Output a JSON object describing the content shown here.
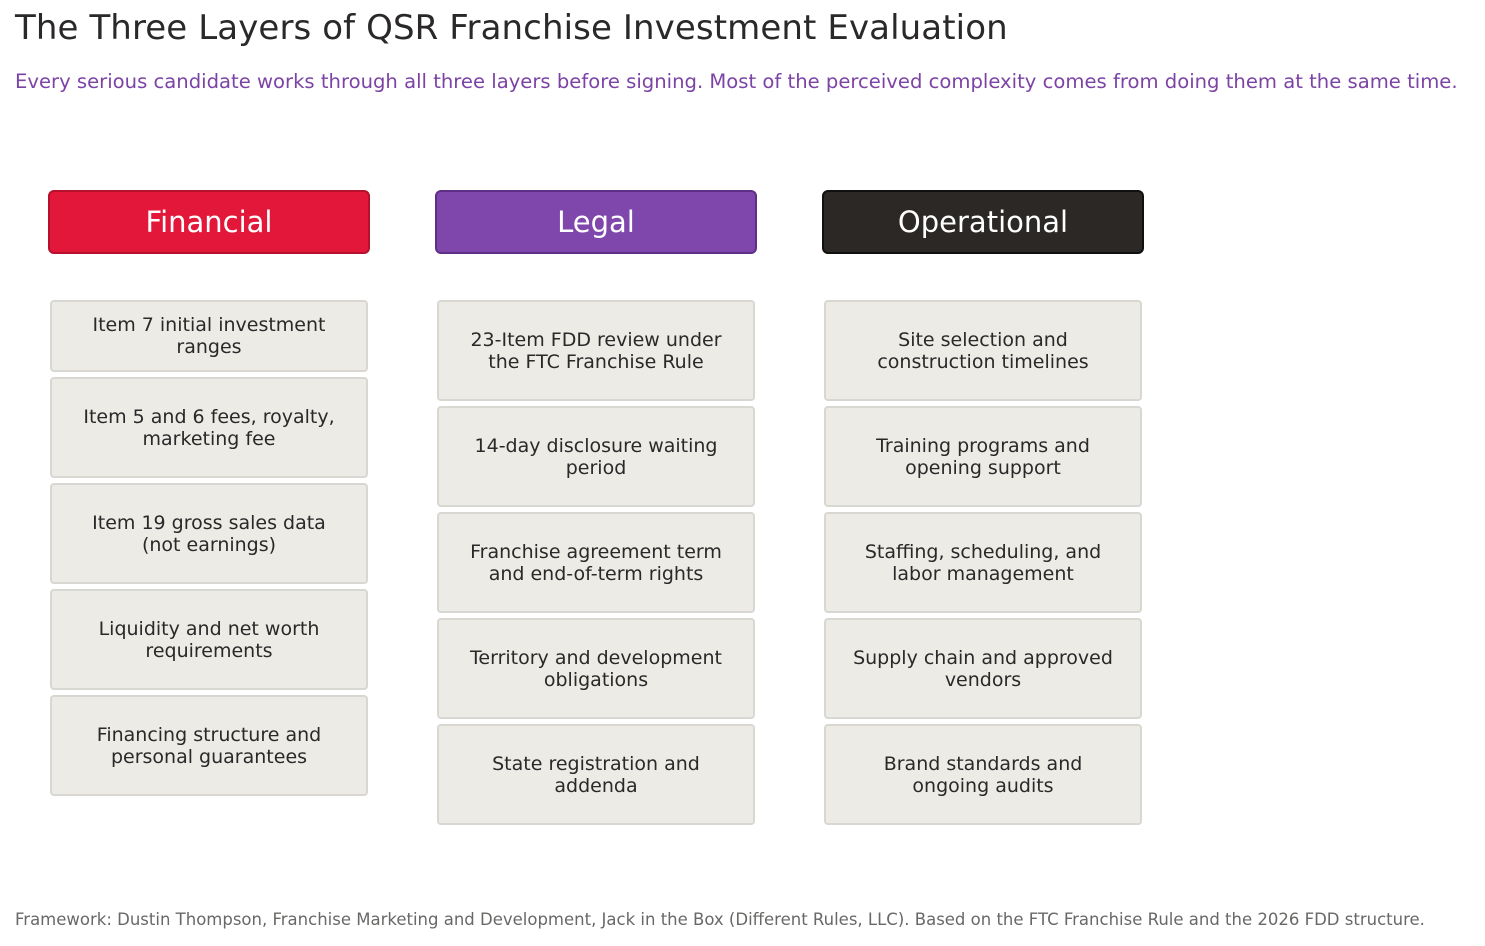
{
  "title": "The Three Layers of QSR Franchise Investment Evaluation",
  "subtitle": "Every serious candidate works through all three layers before signing. Most of the perceived complexity comes from doing them at the same time.",
  "colors": {
    "financial": "#e3173a",
    "legal": "#7f47ac",
    "operational": "#2b2826",
    "subtitle": "#7c43a6",
    "card_bg": "#edebe6"
  },
  "columns": [
    {
      "label": "Financial",
      "items": [
        "Item 7 initial investment ranges",
        "Item 5 and 6 fees, royalty, marketing fee",
        "Item 19 gross sales data (not earnings)",
        "Liquidity and net worth requirements",
        "Financing structure and personal guarantees"
      ]
    },
    {
      "label": "Legal",
      "items": [
        "23-Item FDD review under the FTC Franchise Rule",
        "14-day disclosure waiting period",
        "Franchise agreement term and end-of-term rights",
        "Territory and development obligations",
        "State registration and addenda"
      ]
    },
    {
      "label": "Operational",
      "items": [
        "Site selection and construction timelines",
        "Training programs and opening support",
        "Staffing, scheduling, and labor management",
        "Supply chain and approved vendors",
        "Brand standards and ongoing audits"
      ]
    }
  ],
  "footer": "Framework: Dustin Thompson, Franchise Marketing and Development, Jack in the Box (Different Rules, LLC). Based on the FTC Franchise Rule and the 2026 FDD structure."
}
